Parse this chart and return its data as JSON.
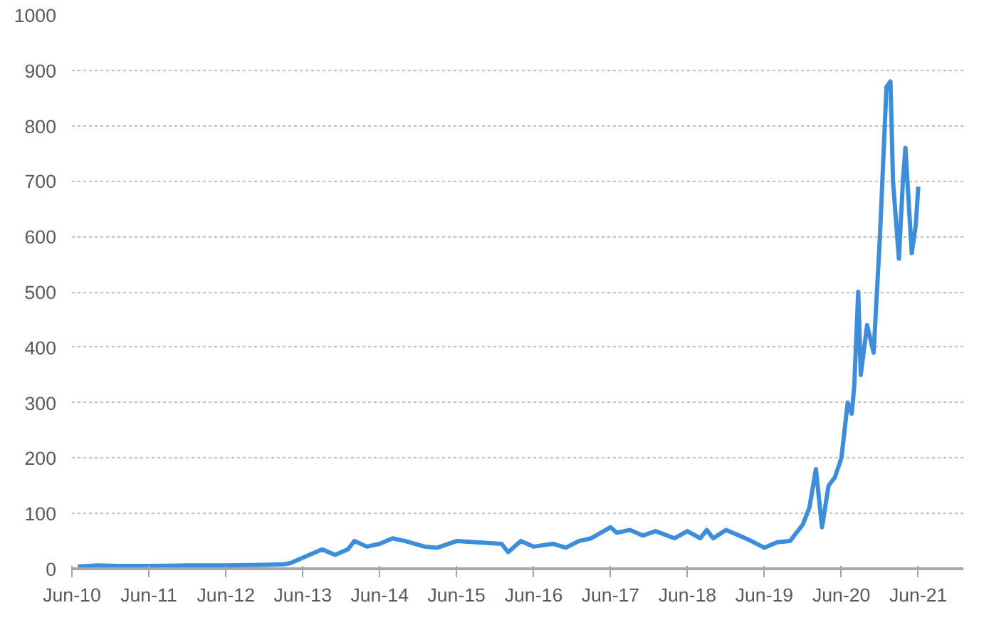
{
  "chart_data": {
    "type": "line",
    "color": "#3d8ddb",
    "line_style": "solid",
    "marker": "none",
    "grid": "y",
    "legend": false,
    "x": [
      "2010-06-29",
      "2010-10",
      "2011-01",
      "2011-06",
      "2011-12",
      "2012-06",
      "2012-12",
      "2013-03",
      "2013-04",
      "2013-06",
      "2013-09",
      "2013-11",
      "2014-01",
      "2014-02",
      "2014-04",
      "2014-06",
      "2014-08",
      "2014-10",
      "2015-01",
      "2015-03",
      "2015-06",
      "2015-09",
      "2016-01",
      "2016-02",
      "2016-04",
      "2016-06",
      "2016-09",
      "2016-11",
      "2017-01",
      "2017-03",
      "2017-06",
      "2017-07",
      "2017-09",
      "2017-11",
      "2018-01",
      "2018-04",
      "2018-06",
      "2018-08",
      "2018-09",
      "2018-10",
      "2018-12",
      "2019-02",
      "2019-04",
      "2019-06",
      "2019-08",
      "2019-10",
      "2019-12",
      "2020-01",
      "2020-02",
      "2020-03",
      "2020-04",
      "2020-05",
      "2020-06",
      "2020-07",
      "2020-07-20",
      "2020-08",
      "2020-08-20",
      "2020-09",
      "2020-10",
      "2020-11",
      "2020-12",
      "2021-01",
      "2021-01-20",
      "2021-02",
      "2021-03",
      "2021-03-20",
      "2021-04",
      "2021-05",
      "2021-05-20",
      "2021-06"
    ],
    "values": [
      4,
      6,
      5,
      5,
      6,
      6,
      7,
      8,
      10,
      20,
      35,
      25,
      35,
      50,
      40,
      45,
      55,
      50,
      40,
      38,
      50,
      48,
      45,
      30,
      50,
      40,
      45,
      38,
      50,
      55,
      75,
      65,
      70,
      60,
      68,
      55,
      68,
      55,
      70,
      55,
      70,
      60,
      50,
      38,
      48,
      50,
      80,
      110,
      180,
      75,
      150,
      165,
      200,
      300,
      280,
      330,
      500,
      350,
      440,
      390,
      600,
      870,
      880,
      700,
      560,
      700,
      760,
      570,
      620,
      690
    ],
    "ylim": [
      0,
      1000
    ],
    "yticks": [
      0,
      100,
      200,
      300,
      400,
      500,
      600,
      700,
      800,
      900,
      1000
    ],
    "xlim": [
      "2010-06",
      "2022-01"
    ],
    "xticks": [
      {
        "value": "2010-06",
        "label": "Jun-10"
      },
      {
        "value": "2011-06",
        "label": "Jun-11"
      },
      {
        "value": "2012-06",
        "label": "Jun-12"
      },
      {
        "value": "2013-06",
        "label": "Jun-13"
      },
      {
        "value": "2014-06",
        "label": "Jun-14"
      },
      {
        "value": "2015-06",
        "label": "Jun-15"
      },
      {
        "value": "2016-06",
        "label": "Jun-16"
      },
      {
        "value": "2017-06",
        "label": "Jun-17"
      },
      {
        "value": "2018-06",
        "label": "Jun-18"
      },
      {
        "value": "2019-06",
        "label": "Jun-19"
      },
      {
        "value": "2020-06",
        "label": "Jun-20"
      },
      {
        "value": "2021-06",
        "label": "Jun-21"
      }
    ]
  }
}
